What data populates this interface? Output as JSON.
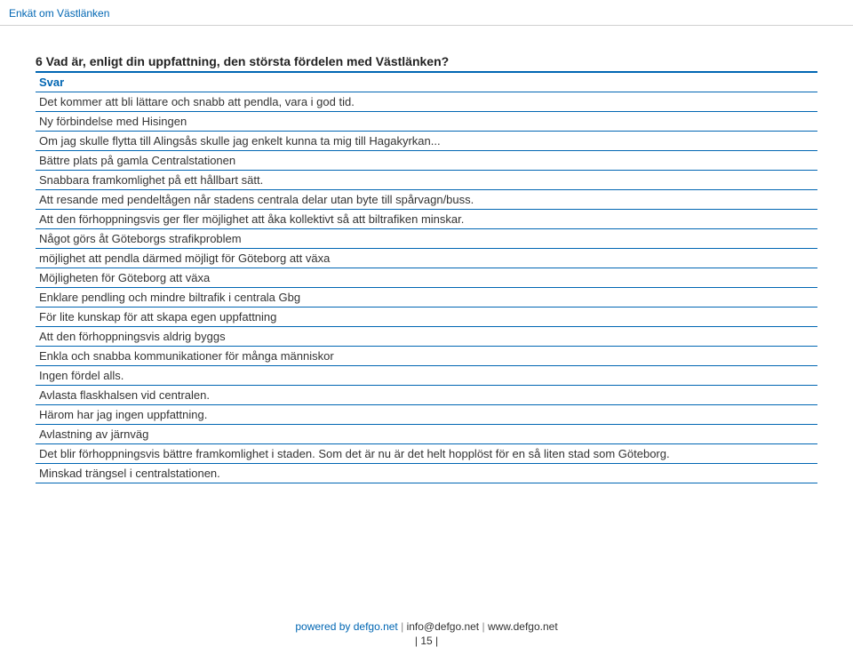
{
  "header": {
    "title": "Enkät om Västlänken"
  },
  "question": {
    "title": "6 Vad är, enligt din uppfattning, den största fördelen med Västlänken?",
    "subheader": "Svar"
  },
  "answers": [
    "Det kommer att bli lättare och snabb att pendla, vara i god tid.",
    "Ny förbindelse med Hisingen",
    "Om jag skulle flytta till Alingsås skulle jag enkelt kunna ta mig till Hagakyrkan...",
    "Bättre plats på gamla Centralstationen",
    "Snabbara framkomlighet på ett hållbart sätt.",
    "Att resande med pendeltågen når stadens centrala delar utan byte till spårvagn/buss.",
    "Att den förhoppningsvis ger fler möjlighet att åka kollektivt så att biltrafiken minskar.",
    "Något görs åt Göteborgs strafikproblem",
    "möjlighet att pendla därmed möjligt för Göteborg att växa",
    "Möjligheten för Göteborg att växa",
    "Enklare pendling och mindre biltrafik i centrala Gbg",
    "För lite kunskap för att skapa egen uppfattning",
    "Att den förhoppningsvis aldrig byggs",
    "Enkla och snabba kommunikationer för många människor",
    "Ingen fördel alls.",
    "Avlasta flaskhalsen vid centralen.",
    "Härom har jag ingen uppfattning.",
    "Avlastning av järnväg",
    "Det blir förhoppningsvis bättre framkomlighet i staden. Som det är nu är det helt hopplöst för en så liten stad som Göteborg.",
    "Minskad trängsel i centralstationen."
  ],
  "footer": {
    "powered": "powered by defgo.net",
    "email": "info@defgo.net",
    "url": "www.defgo.net",
    "page": "| 15 |"
  },
  "colors": {
    "accent": "#0066b3",
    "text": "#333333",
    "divider": "#d0d0d0",
    "background": "#ffffff"
  }
}
